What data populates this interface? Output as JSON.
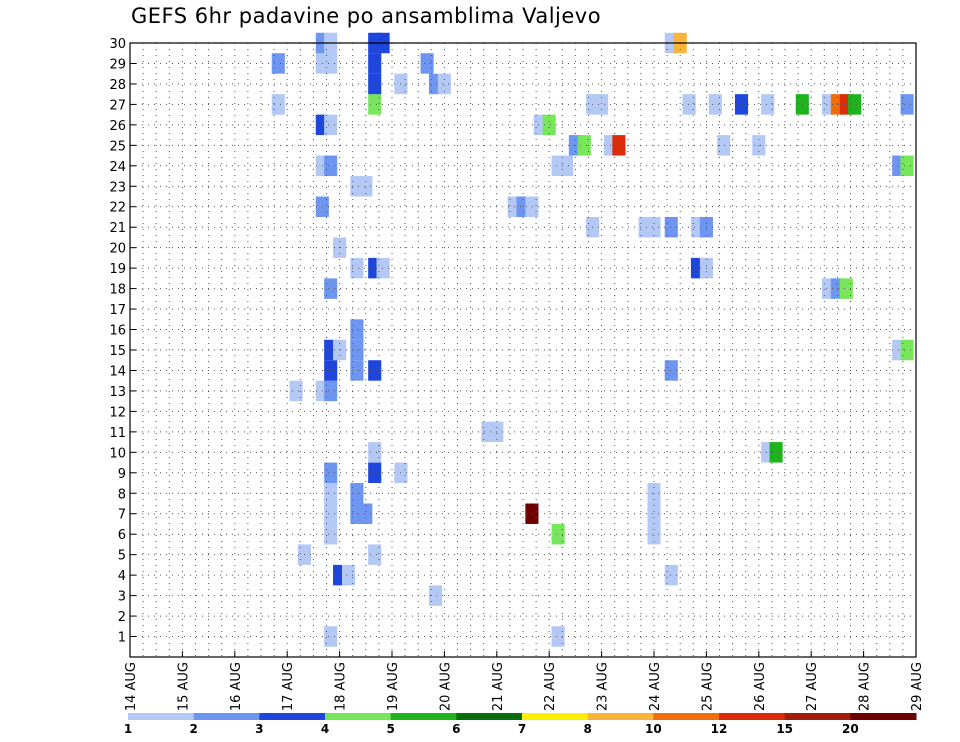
{
  "chart_data": {
    "type": "heatmap",
    "title": "GEFS 6hr padavine po ansamblima Valjevo",
    "xlabel": "",
    "ylabel": "",
    "x_tick_labels": [
      "14 AUG",
      "15 AUG",
      "16 AUG",
      "17 AUG",
      "18 AUG",
      "19 AUG",
      "20 AUG",
      "21 AUG",
      "22 AUG",
      "23 AUG",
      "24 AUG",
      "25 AUG",
      "26 AUG",
      "27 AUG",
      "28 AUG",
      "29 AUG"
    ],
    "y_tick_labels": [
      "1",
      "2",
      "3",
      "4",
      "5",
      "6",
      "7",
      "8",
      "9",
      "10",
      "11",
      "12",
      "13",
      "14",
      "15",
      "16",
      "17",
      "18",
      "19",
      "20",
      "21",
      "22",
      "23",
      "24",
      "25",
      "26",
      "27",
      "28",
      "29",
      "30"
    ],
    "x_range_days": [
      14,
      29
    ],
    "y_range": [
      0,
      30
    ],
    "grid": true,
    "legend_position": "bottom",
    "legend": {
      "labels": [
        "1",
        "2",
        "3",
        "4",
        "5",
        "6",
        "7",
        "8",
        "10",
        "12",
        "15",
        "20"
      ],
      "colors": [
        "#b4c8f5",
        "#6e96f0",
        "#1e46dc",
        "#78e65a",
        "#1eb41e",
        "#0a6e0a",
        "#faf000",
        "#fab43c",
        "#f06e0a",
        "#dc2d0a",
        "#a01e0a",
        "#6e0000"
      ]
    },
    "cells": [
      {
        "m": 1,
        "t": 17.83,
        "v": 1
      },
      {
        "m": 1,
        "t": 22.17,
        "v": 1
      },
      {
        "m": 3,
        "t": 19.83,
        "v": 1
      },
      {
        "m": 4,
        "t": 18.0,
        "v": 3
      },
      {
        "m": 4,
        "t": 18.17,
        "v": 1
      },
      {
        "m": 4,
        "t": 24.33,
        "v": 1
      },
      {
        "m": 5,
        "t": 17.33,
        "v": 1
      },
      {
        "m": 5,
        "t": 18.67,
        "v": 1
      },
      {
        "m": 6,
        "t": 17.83,
        "v": 1
      },
      {
        "m": 6,
        "t": 22.17,
        "v": 4
      },
      {
        "m": 6,
        "t": 24.0,
        "v": 1
      },
      {
        "m": 7,
        "t": 17.83,
        "v": 1
      },
      {
        "m": 7,
        "t": 18.33,
        "v": 2
      },
      {
        "m": 7,
        "t": 18.5,
        "v": 2
      },
      {
        "m": 7,
        "t": 21.67,
        "v": 20
      },
      {
        "m": 7,
        "t": 24.0,
        "v": 1
      },
      {
        "m": 8,
        "t": 17.83,
        "v": 1
      },
      {
        "m": 8,
        "t": 18.33,
        "v": 2
      },
      {
        "m": 8,
        "t": 24.0,
        "v": 1
      },
      {
        "m": 9,
        "t": 17.83,
        "v": 2
      },
      {
        "m": 9,
        "t": 18.67,
        "v": 3
      },
      {
        "m": 9,
        "t": 19.17,
        "v": 1
      },
      {
        "m": 10,
        "t": 18.67,
        "v": 1
      },
      {
        "m": 10,
        "t": 26.17,
        "v": 1
      },
      {
        "m": 10,
        "t": 26.33,
        "v": 5
      },
      {
        "m": 11,
        "t": 20.83,
        "v": 1
      },
      {
        "m": 11,
        "t": 21.0,
        "v": 1
      },
      {
        "m": 13,
        "t": 17.17,
        "v": 1
      },
      {
        "m": 13,
        "t": 17.67,
        "v": 1
      },
      {
        "m": 13,
        "t": 17.83,
        "v": 2
      },
      {
        "m": 14,
        "t": 17.83,
        "v": 3
      },
      {
        "m": 14,
        "t": 18.33,
        "v": 2
      },
      {
        "m": 14,
        "t": 18.67,
        "v": 3
      },
      {
        "m": 14,
        "t": 24.33,
        "v": 2
      },
      {
        "m": 15,
        "t": 17.83,
        "v": 3
      },
      {
        "m": 15,
        "t": 18.0,
        "v": 1
      },
      {
        "m": 15,
        "t": 18.33,
        "v": 2
      },
      {
        "m": 15,
        "t": 28.67,
        "v": 1
      },
      {
        "m": 15,
        "t": 28.83,
        "v": 4
      },
      {
        "m": 16,
        "t": 18.33,
        "v": 2
      },
      {
        "m": 18,
        "t": 17.83,
        "v": 2
      },
      {
        "m": 18,
        "t": 27.33,
        "v": 1
      },
      {
        "m": 18,
        "t": 27.5,
        "v": 2
      },
      {
        "m": 18,
        "t": 27.67,
        "v": 4
      },
      {
        "m": 19,
        "t": 18.33,
        "v": 1
      },
      {
        "m": 19,
        "t": 18.67,
        "v": 3
      },
      {
        "m": 19,
        "t": 18.83,
        "v": 1
      },
      {
        "m": 19,
        "t": 24.83,
        "v": 3
      },
      {
        "m": 19,
        "t": 25.0,
        "v": 1
      },
      {
        "m": 20,
        "t": 18.0,
        "v": 1
      },
      {
        "m": 21,
        "t": 22.83,
        "v": 1
      },
      {
        "m": 21,
        "t": 23.83,
        "v": 1
      },
      {
        "m": 21,
        "t": 24.0,
        "v": 1
      },
      {
        "m": 21,
        "t": 24.33,
        "v": 2
      },
      {
        "m": 21,
        "t": 24.83,
        "v": 1
      },
      {
        "m": 21,
        "t": 25.0,
        "v": 2
      },
      {
        "m": 22,
        "t": 17.67,
        "v": 2
      },
      {
        "m": 22,
        "t": 21.33,
        "v": 1
      },
      {
        "m": 22,
        "t": 21.5,
        "v": 2
      },
      {
        "m": 22,
        "t": 21.67,
        "v": 1
      },
      {
        "m": 23,
        "t": 18.33,
        "v": 1
      },
      {
        "m": 23,
        "t": 18.5,
        "v": 1
      },
      {
        "m": 24,
        "t": 17.67,
        "v": 1
      },
      {
        "m": 24,
        "t": 17.83,
        "v": 2
      },
      {
        "m": 24,
        "t": 22.17,
        "v": 1
      },
      {
        "m": 24,
        "t": 22.33,
        "v": 1
      },
      {
        "m": 24,
        "t": 28.67,
        "v": 2
      },
      {
        "m": 24,
        "t": 28.83,
        "v": 4
      },
      {
        "m": 25,
        "t": 22.5,
        "v": 2
      },
      {
        "m": 25,
        "t": 22.67,
        "v": 4
      },
      {
        "m": 25,
        "t": 23.17,
        "v": 1
      },
      {
        "m": 25,
        "t": 23.33,
        "v": 12
      },
      {
        "m": 25,
        "t": 25.33,
        "v": 1
      },
      {
        "m": 25,
        "t": 26.0,
        "v": 1
      },
      {
        "m": 26,
        "t": 17.67,
        "v": 3
      },
      {
        "m": 26,
        "t": 17.83,
        "v": 1
      },
      {
        "m": 26,
        "t": 21.83,
        "v": 1
      },
      {
        "m": 26,
        "t": 22.0,
        "v": 4
      },
      {
        "m": 27,
        "t": 16.83,
        "v": 1
      },
      {
        "m": 27,
        "t": 18.67,
        "v": 4
      },
      {
        "m": 27,
        "t": 22.83,
        "v": 1
      },
      {
        "m": 27,
        "t": 23.0,
        "v": 1
      },
      {
        "m": 27,
        "t": 24.67,
        "v": 1
      },
      {
        "m": 27,
        "t": 25.17,
        "v": 1
      },
      {
        "m": 27,
        "t": 25.67,
        "v": 3
      },
      {
        "m": 27,
        "t": 26.17,
        "v": 1
      },
      {
        "m": 27,
        "t": 26.83,
        "v": 5
      },
      {
        "m": 27,
        "t": 27.33,
        "v": 1
      },
      {
        "m": 27,
        "t": 27.5,
        "v": 10
      },
      {
        "m": 27,
        "t": 27.67,
        "v": 12
      },
      {
        "m": 27,
        "t": 27.83,
        "v": 5
      },
      {
        "m": 27,
        "t": 28.83,
        "v": 2
      },
      {
        "m": 28,
        "t": 18.67,
        "v": 3
      },
      {
        "m": 28,
        "t": 19.17,
        "v": 1
      },
      {
        "m": 28,
        "t": 19.83,
        "v": 2
      },
      {
        "m": 28,
        "t": 20.0,
        "v": 1
      },
      {
        "m": 29,
        "t": 16.83,
        "v": 2
      },
      {
        "m": 29,
        "t": 17.67,
        "v": 1
      },
      {
        "m": 29,
        "t": 17.83,
        "v": 1
      },
      {
        "m": 29,
        "t": 18.67,
        "v": 3
      },
      {
        "m": 29,
        "t": 19.67,
        "v": 2
      },
      {
        "m": 30,
        "t": 17.67,
        "v": 2
      },
      {
        "m": 30,
        "t": 17.83,
        "v": 1
      },
      {
        "m": 30,
        "t": 18.67,
        "v": 3
      },
      {
        "m": 30,
        "t": 18.83,
        "v": 3
      },
      {
        "m": 30,
        "t": 24.33,
        "v": 1
      },
      {
        "m": 30,
        "t": 24.5,
        "v": 8
      }
    ]
  }
}
